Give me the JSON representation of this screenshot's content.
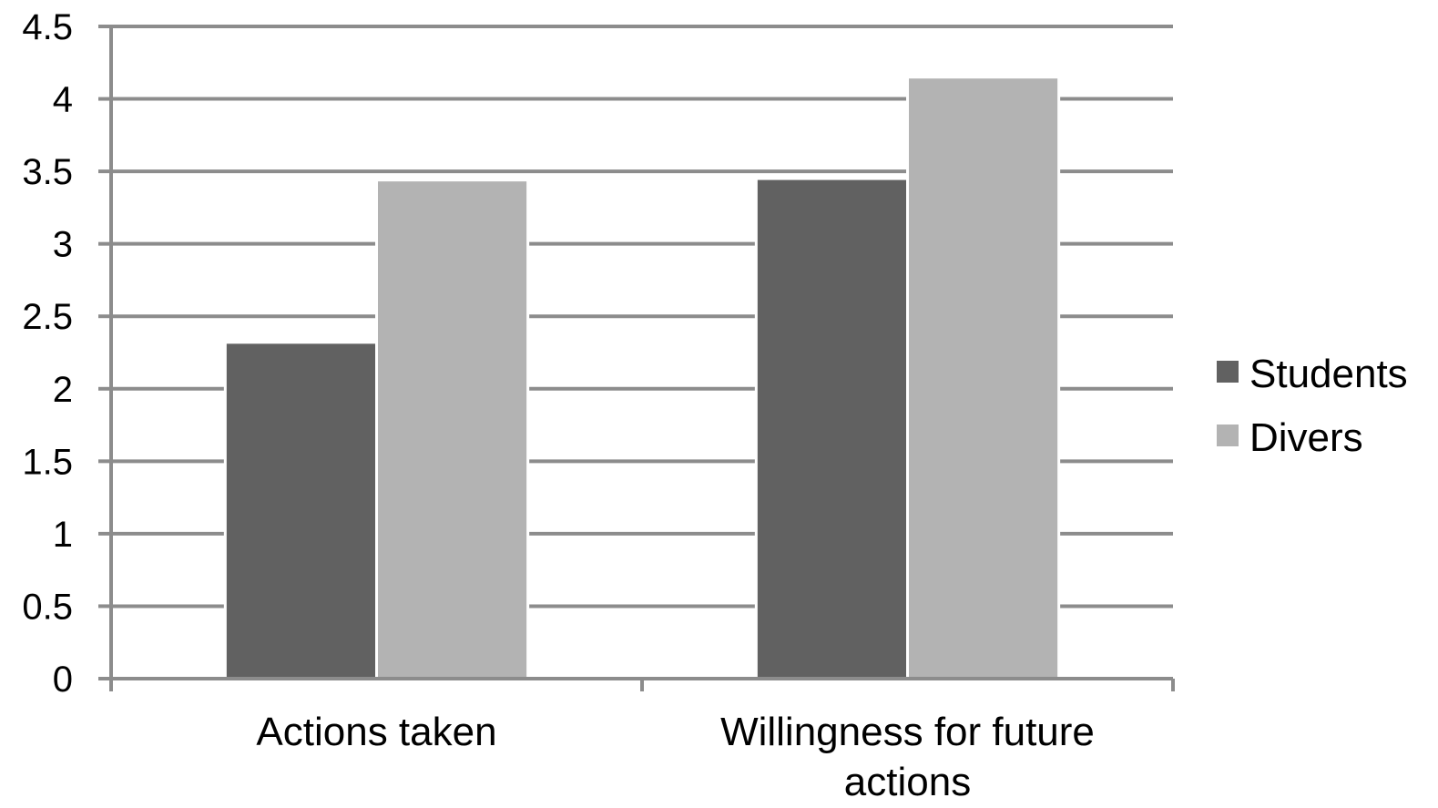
{
  "chart_data": {
    "type": "bar",
    "categories": [
      "Actions taken",
      "Willingness for future actions"
    ],
    "category_lines": [
      [
        "Actions taken"
      ],
      [
        "Willingness for future",
        "actions"
      ]
    ],
    "series": [
      {
        "name": "Students",
        "values": [
          2.32,
          3.45
        ],
        "color": "#616161"
      },
      {
        "name": "Divers",
        "values": [
          3.44,
          4.15
        ],
        "color": "#b3b3b3"
      }
    ],
    "ylim": [
      0,
      4.5
    ],
    "yticks": [
      "0",
      "0.5",
      "1",
      "1.5",
      "2",
      "2.5",
      "3",
      "3.5",
      "4",
      "4.5"
    ],
    "grid": true,
    "grid_color": "#8c8c8c",
    "legend_position": "right",
    "title": "",
    "xlabel": "",
    "ylabel": ""
  }
}
